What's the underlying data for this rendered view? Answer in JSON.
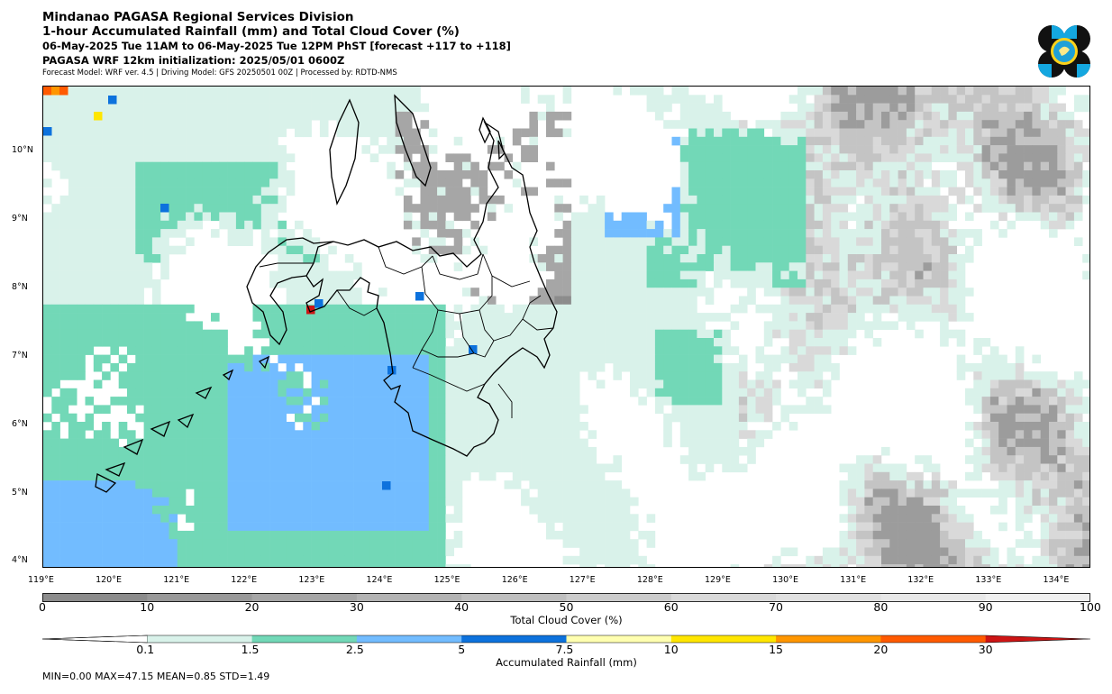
{
  "header": {
    "line1": "Mindanao PAGASA Regional Services Division",
    "line2": "1-hour Accumulated Rainfall (mm) and Total Cloud Cover (%)",
    "line3": "06-May-2025 Tue 11AM to 06-May-2025 Tue 12PM PhST [forecast +117 to +118]",
    "line4": "PAGASA WRF 12km initialization: 2025/05/01 0600Z",
    "line5": "Forecast Model: WRF ver. 4.5 | Driving Model: GFS 20250501 00Z | Processed by: RDTD-NMS"
  },
  "map": {
    "lon_ticks": [
      "119°E",
      "120°E",
      "121°E",
      "122°E",
      "123°E",
      "124°E",
      "125°E",
      "126°E",
      "127°E",
      "128°E",
      "129°E",
      "130°E",
      "131°E",
      "132°E",
      "133°E",
      "134°E"
    ],
    "lat_ticks": [
      "10°N",
      "9°N",
      "8°N",
      "7°N",
      "6°N",
      "5°N",
      "4°N"
    ],
    "lon_range": [
      119,
      134.5
    ],
    "lat_range": [
      3.9,
      10.95
    ]
  },
  "cloud_colorbar": {
    "label": "Total Cloud Cover (%)",
    "ticks": [
      "0",
      "10",
      "20",
      "30",
      "40",
      "50",
      "60",
      "70",
      "80",
      "90",
      "100"
    ],
    "colors": [
      "#8c8c8c",
      "#999999",
      "#a6a6a6",
      "#b3b3b3",
      "#bfbfbf",
      "#cccccc",
      "#d9d9d9",
      "#e0e0e0",
      "#e8e8e8",
      "#f0f0f0"
    ]
  },
  "rain_colorbar": {
    "label": "Accumulated Rainfall (mm)",
    "ticks": [
      "0.1",
      "1.5",
      "2.5",
      "5",
      "7.5",
      "10",
      "15",
      "20",
      "30"
    ],
    "colors": [
      "#d9f2ea",
      "#72d8b7",
      "#72bcff",
      "#0d72dd",
      "#ffffb0",
      "#ffe600",
      "#ff9600",
      "#ff5a00",
      "#cd1414"
    ]
  },
  "stats": "MIN=0.00   MAX=47.15   MEAN=0.85   STD=1.49",
  "colors": {
    "cloud_dark": "#8c8c8c",
    "cloud_light": "#d9d9d9",
    "rain_light": "#d9f2ea",
    "rain_green": "#72d8b7",
    "rain_blue": "#72bcff",
    "rain_dark_blue": "#0d72dd",
    "rain_red": "#cd1414"
  },
  "logo_icon": "pagasa-logo-icon"
}
